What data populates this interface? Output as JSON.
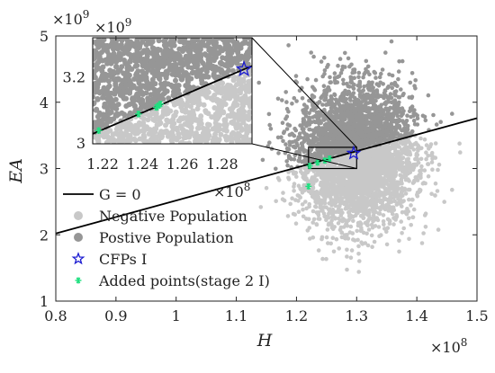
{
  "chart_data": {
    "type": "scatter",
    "xlabel": "H",
    "ylabel": "EA",
    "xlim": [
      0.8,
      1.5
    ],
    "ylim": [
      1,
      5
    ],
    "x_ticks": [
      "0.8",
      "0.9",
      "1",
      "1.1",
      "1.2",
      "1.3",
      "1.4",
      "1.5"
    ],
    "y_ticks": [
      "1",
      "2",
      "3",
      "4",
      "5"
    ],
    "x_exponent_label": "×10",
    "x_exponent_power": "8",
    "y_exponent_label": "×10",
    "y_exponent_power": "9",
    "grid": false,
    "legend_position": "bottom-left",
    "limit_state_line": {
      "name": "G = 0",
      "points": [
        [
          0.8,
          2.02
        ],
        [
          1.5,
          3.76
        ]
      ]
    },
    "series": [
      {
        "name": "Negative Population",
        "color": "#c8c8c8",
        "cloud_center": [
          1.3,
          2.95
        ],
        "description_counts": "dense cloud below limit line"
      },
      {
        "name": "Postive Population",
        "color": "#969696",
        "cloud_center": [
          1.32,
          3.55
        ],
        "description_counts": "dense cloud above limit line"
      },
      {
        "name": "CFPs I",
        "color": "#1b1bd1",
        "marker": "star",
        "points": [
          [
            1.295,
            3.23
          ]
        ]
      },
      {
        "name": "Added points(stage 2 I)",
        "color": "#20e080",
        "marker": "asterisk",
        "points": [
          [
            1.222,
            3.04
          ],
          [
            1.235,
            3.09
          ],
          [
            1.247,
            3.12
          ],
          [
            1.255,
            3.15
          ],
          [
            1.22,
            2.73
          ]
        ]
      }
    ],
    "inset": {
      "xlim": [
        1.215,
        1.295
      ],
      "ylim": [
        3.0,
        3.32
      ],
      "x_ticks": [
        "1.22",
        "1.24",
        "1.26",
        "1.28"
      ],
      "y_ticks": [
        "3",
        "3.2"
      ],
      "x_exponent_label": "×10",
      "x_exponent_power": "8",
      "y_exponent_label": "×10",
      "y_exponent_power": "9",
      "line_points": [
        [
          1.215,
          3.03
        ],
        [
          1.295,
          3.235
        ]
      ],
      "cfp_point": [
        1.291,
        3.225
      ],
      "added_points": [
        [
          1.218,
          3.04
        ],
        [
          1.238,
          3.09
        ],
        [
          1.247,
          3.11
        ],
        [
          1.248,
          3.115
        ],
        [
          1.249,
          3.12
        ]
      ]
    }
  }
}
